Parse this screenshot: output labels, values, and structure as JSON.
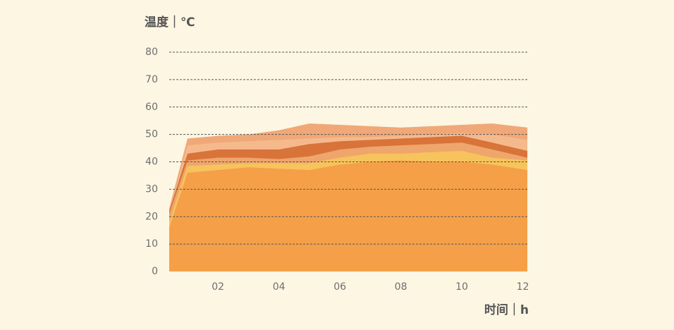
{
  "chart_data": {
    "type": "area",
    "y_label": "温度｜℃",
    "x_label": "时间｜h",
    "x": [
      0.4,
      1,
      2,
      3,
      4,
      5,
      6,
      7,
      8,
      9,
      10,
      11,
      12.15
    ],
    "xlim": [
      0.4,
      12.15
    ],
    "xticks": [
      {
        "value": 2,
        "label": "02"
      },
      {
        "value": 4,
        "label": "04"
      },
      {
        "value": 6,
        "label": "06"
      },
      {
        "value": 8,
        "label": "08"
      },
      {
        "value": 10,
        "label": "10"
      },
      {
        "value": 12,
        "label": "12"
      }
    ],
    "ylim": [
      0,
      80
    ],
    "yticks": [
      0,
      10,
      20,
      30,
      40,
      50,
      60,
      70,
      80
    ],
    "grid": true,
    "series": [
      {
        "color": "#f0a878",
        "values": [
          23,
          48.5,
          49.5,
          50,
          51.5,
          54,
          53.5,
          53,
          52.5,
          53,
          53.5,
          54,
          52.5
        ]
      },
      {
        "color": "#f5b98c",
        "values": [
          22,
          46,
          47,
          47.5,
          48,
          48.5,
          49,
          49,
          49.5,
          50,
          50.5,
          50,
          48
        ]
      },
      {
        "color": "#d8733a",
        "values": [
          22,
          43,
          44.5,
          44.5,
          44.5,
          46.5,
          47.5,
          48,
          48.5,
          49,
          49.5,
          47,
          44
        ]
      },
      {
        "color": "#eea66c",
        "values": [
          21,
          40.5,
          41.5,
          41.5,
          41,
          42,
          44.5,
          45.5,
          46,
          46.5,
          47,
          44.5,
          41.5
        ]
      },
      {
        "color": "#f7c35c",
        "values": [
          18,
          38.5,
          39,
          39.5,
          39.5,
          39.5,
          41.5,
          43,
          43,
          43.5,
          44,
          41.5,
          40.5
        ]
      },
      {
        "color": "#f5a048",
        "values": [
          16,
          36,
          37,
          38,
          37.5,
          37,
          39,
          40,
          40.5,
          40,
          40,
          39,
          37
        ]
      }
    ]
  }
}
